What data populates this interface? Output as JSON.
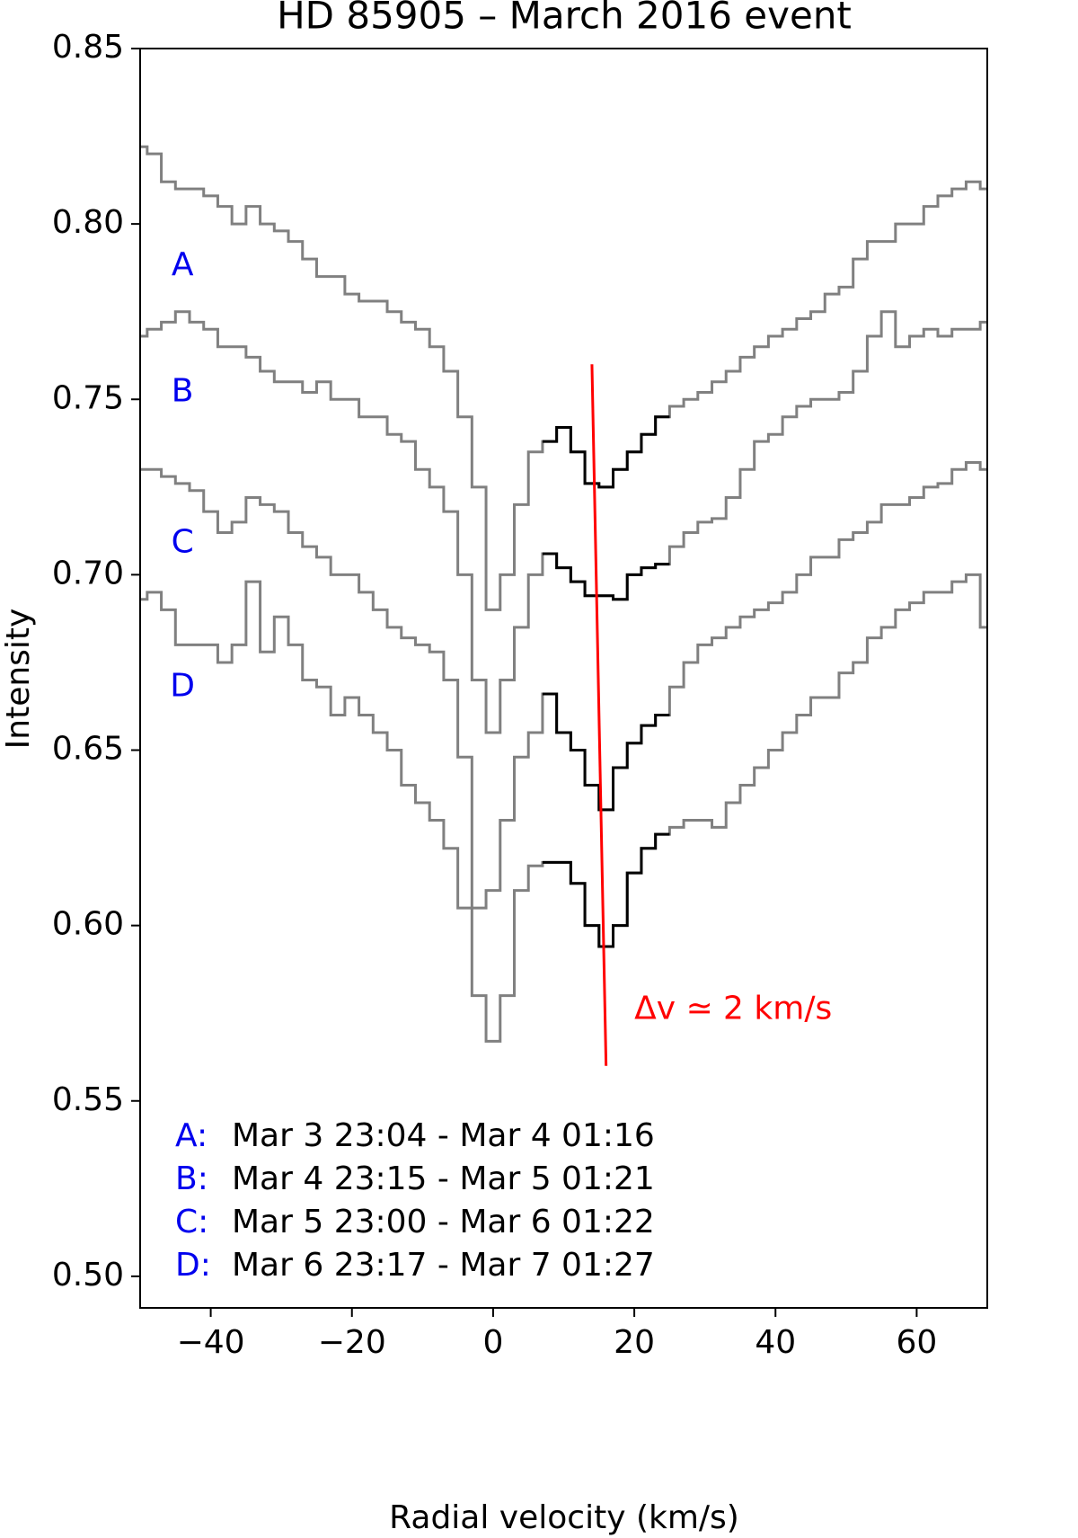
{
  "chart_data": {
    "type": "step",
    "title": "HD 85905 – March 2016 event",
    "xlabel": "Radial velocity (km/s)",
    "ylabel": "Intensity",
    "xlim": [
      -50,
      70
    ],
    "ylim": [
      0.491,
      0.85
    ],
    "xticks": [
      {
        "value": -40,
        "label": "−40"
      },
      {
        "value": -20,
        "label": "−20"
      },
      0,
      20,
      40,
      60
    ],
    "yticks": [
      {
        "value": 0.5,
        "label": "0.50"
      },
      {
        "value": 0.55,
        "label": "0.55"
      },
      {
        "value": 0.6,
        "label": "0.60"
      },
      {
        "value": 0.65,
        "label": "0.65"
      },
      {
        "value": 0.7,
        "label": "0.70"
      },
      {
        "value": 0.75,
        "label": "0.75"
      },
      {
        "value": 0.8,
        "label": "0.80"
      },
      {
        "value": 0.85,
        "label": "0.85"
      }
    ],
    "x": [
      -50,
      -48,
      -46,
      -44,
      -42,
      -40,
      -38,
      -36,
      -34,
      -32,
      -30,
      -28,
      -26,
      -24,
      -22,
      -20,
      -18,
      -16,
      -14,
      -12,
      -10,
      -8,
      -6,
      -4,
      -2,
      0,
      2,
      4,
      6,
      8,
      10,
      12,
      14,
      16,
      18,
      20,
      22,
      24,
      26,
      28,
      30,
      32,
      34,
      36,
      38,
      40,
      42,
      44,
      46,
      48,
      50,
      52,
      54,
      56,
      58,
      60,
      62,
      64,
      66,
      68,
      70
    ],
    "highlight": {
      "xlim": [
        7,
        24
      ],
      "color": "#000000"
    },
    "label_color": "#0000ee",
    "series": [
      {
        "name": "A",
        "color": "#808080",
        "values": [
          0.822,
          0.82,
          0.812,
          0.81,
          0.81,
          0.808,
          0.805,
          0.8,
          0.805,
          0.8,
          0.798,
          0.795,
          0.79,
          0.785,
          0.785,
          0.78,
          0.778,
          0.778,
          0.775,
          0.772,
          0.77,
          0.765,
          0.758,
          0.745,
          0.725,
          0.69,
          0.7,
          0.72,
          0.735,
          0.738,
          0.742,
          0.735,
          0.726,
          0.725,
          0.73,
          0.735,
          0.74,
          0.745,
          0.748,
          0.75,
          0.752,
          0.755,
          0.758,
          0.762,
          0.765,
          0.768,
          0.77,
          0.773,
          0.775,
          0.78,
          0.782,
          0.79,
          0.795,
          0.795,
          0.8,
          0.8,
          0.805,
          0.808,
          0.81,
          0.812,
          0.81
        ]
      },
      {
        "name": "B",
        "color": "#808080",
        "values": [
          0.768,
          0.77,
          0.772,
          0.775,
          0.772,
          0.77,
          0.765,
          0.765,
          0.762,
          0.758,
          0.755,
          0.755,
          0.752,
          0.755,
          0.75,
          0.75,
          0.745,
          0.745,
          0.74,
          0.738,
          0.73,
          0.725,
          0.718,
          0.7,
          0.67,
          0.655,
          0.67,
          0.685,
          0.7,
          0.706,
          0.702,
          0.698,
          0.694,
          0.694,
          0.693,
          0.7,
          0.702,
          0.703,
          0.708,
          0.712,
          0.715,
          0.716,
          0.722,
          0.73,
          0.738,
          0.74,
          0.745,
          0.748,
          0.75,
          0.75,
          0.752,
          0.758,
          0.768,
          0.775,
          0.765,
          0.768,
          0.77,
          0.768,
          0.77,
          0.77,
          0.772
        ]
      },
      {
        "name": "C",
        "color": "#808080",
        "values": [
          0.73,
          0.73,
          0.728,
          0.726,
          0.724,
          0.718,
          0.712,
          0.715,
          0.722,
          0.72,
          0.718,
          0.712,
          0.708,
          0.705,
          0.7,
          0.7,
          0.695,
          0.69,
          0.685,
          0.682,
          0.68,
          0.678,
          0.67,
          0.648,
          0.605,
          0.61,
          0.63,
          0.648,
          0.655,
          0.666,
          0.655,
          0.65,
          0.64,
          0.633,
          0.645,
          0.652,
          0.657,
          0.66,
          0.668,
          0.675,
          0.68,
          0.682,
          0.685,
          0.688,
          0.69,
          0.692,
          0.695,
          0.7,
          0.705,
          0.705,
          0.71,
          0.712,
          0.715,
          0.72,
          0.72,
          0.722,
          0.725,
          0.726,
          0.73,
          0.732,
          0.73
        ]
      },
      {
        "name": "D",
        "color": "#808080",
        "values": [
          0.693,
          0.695,
          0.69,
          0.68,
          0.68,
          0.68,
          0.675,
          0.68,
          0.698,
          0.678,
          0.688,
          0.68,
          0.67,
          0.668,
          0.66,
          0.665,
          0.66,
          0.655,
          0.65,
          0.64,
          0.635,
          0.63,
          0.622,
          0.605,
          0.58,
          0.567,
          0.58,
          0.61,
          0.617,
          0.618,
          0.618,
          0.612,
          0.6,
          0.594,
          0.6,
          0.615,
          0.622,
          0.626,
          0.628,
          0.63,
          0.63,
          0.628,
          0.635,
          0.64,
          0.645,
          0.65,
          0.655,
          0.66,
          0.665,
          0.665,
          0.672,
          0.675,
          0.682,
          0.685,
          0.69,
          0.692,
          0.695,
          0.695,
          0.698,
          0.7,
          0.685
        ]
      }
    ],
    "shift_line": {
      "x": [
        14,
        16
      ],
      "y": [
        0.76,
        0.56
      ],
      "color": "#ff0000",
      "label": "Δv ≃ 2 km/s"
    },
    "observations": [
      {
        "key": "A:",
        "text": "Mar 3 23:04 - Mar 4 01:16"
      },
      {
        "key": "B:",
        "text": "Mar 4 23:15 - Mar 5 01:21"
      },
      {
        "key": "C:",
        "text": "Mar 5 23:00 - Mar 6 01:22"
      },
      {
        "key": "D:",
        "text": "Mar 6 23:17 - Mar 7 01:27"
      }
    ]
  }
}
